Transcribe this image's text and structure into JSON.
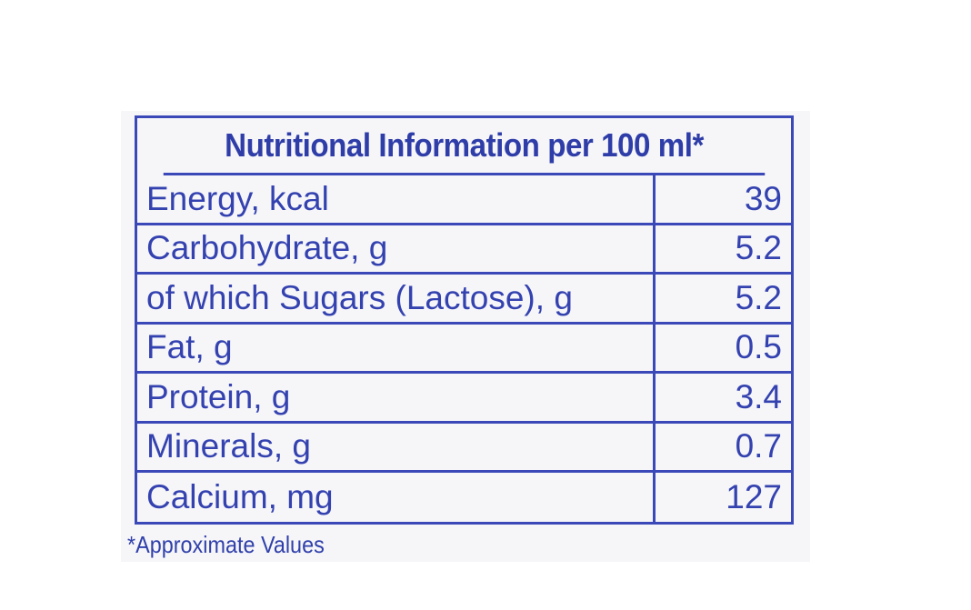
{
  "table": {
    "title": "Nutritional Information per 100 ml*",
    "rows": [
      {
        "name": "Energy, kcal",
        "value": "39"
      },
      {
        "name": "Carbohydrate, g",
        "value": "5.2"
      },
      {
        "name": "of which Sugars (Lactose), g",
        "value": "5.2"
      },
      {
        "name": "Fat, g",
        "value": "0.5"
      },
      {
        "name": "Protein, g",
        "value": "3.4"
      },
      {
        "name": "Minerals, g",
        "value": "0.7"
      },
      {
        "name": "Calcium, mg",
        "value": "127"
      }
    ]
  },
  "footnote": "*Approximate Values",
  "colors": {
    "ink": "#3b49b8",
    "background": "#f6f6f9"
  }
}
